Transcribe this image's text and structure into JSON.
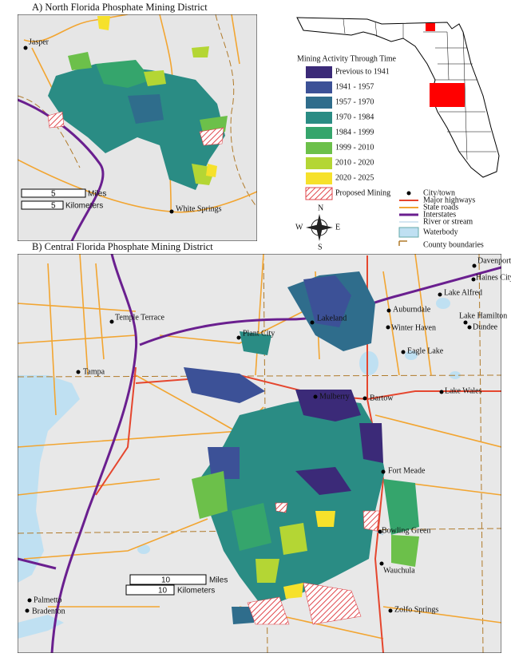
{
  "panel_a": {
    "title": "A) North Florida Phosphate Mining District",
    "cities": [
      "Jasper",
      "White Springs"
    ],
    "scale": {
      "miles_value": "5",
      "miles_unit": "Miles",
      "km_value": "5",
      "km_unit": "Kilometers"
    }
  },
  "legend": {
    "title": "Mining Activity Through Time",
    "items": [
      {
        "label": "Previous to 1941",
        "color": "#3b2a78"
      },
      {
        "label": "1941 - 1957",
        "color": "#3c5197"
      },
      {
        "label": "1957 - 1970",
        "color": "#2f6d8c"
      },
      {
        "label": "1970 - 1984",
        "color": "#2a8c84"
      },
      {
        "label": "1984 - 1999",
        "color": "#35a56c"
      },
      {
        "label": "1999 - 2010",
        "color": "#6cc04a"
      },
      {
        "label": "2010 - 2020",
        "color": "#b4d634"
      },
      {
        "label": "2020 - 2025",
        "color": "#f6e12b"
      },
      {
        "label": "Proposed Mining",
        "color": "#e0474c",
        "pattern": "hatch"
      }
    ]
  },
  "reference_legend": {
    "items": [
      "City/town",
      "Major highways",
      "State roads",
      "Interstates",
      "River or stream",
      "Waterbody",
      "County boundaries"
    ]
  },
  "compass": {
    "n": "N",
    "s": "S",
    "e": "E",
    "w": "W"
  },
  "panel_b": {
    "title": "B) Central Florida Phosphate Mining District",
    "cities": [
      "Davenport",
      "Haines City",
      "Lake Alfred",
      "Auburndale",
      "Lake Hamilton",
      "Dundee",
      "Temple Terrace",
      "Plant City",
      "Lakeland",
      "Winter Haven",
      "Eagle Lake",
      "Tampa",
      "Lake Wales",
      "Mulberry",
      "Bartow",
      "Fort Meade",
      "Bowling Green",
      "Wauchula",
      "Palmetto",
      "Bradenton",
      "Zolfo Springs"
    ],
    "scale": {
      "miles_value": "10",
      "miles_unit": "Miles",
      "km_value": "10",
      "km_unit": "Kilometers"
    }
  }
}
